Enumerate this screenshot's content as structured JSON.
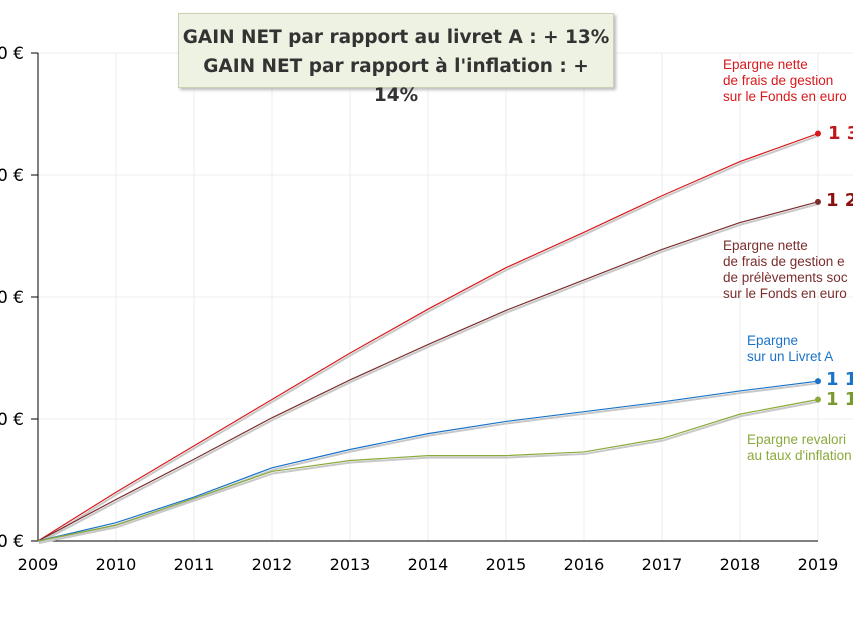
{
  "banner": {
    "line1": "GAIN NET par rapport au livret A : + 13%",
    "line2": "GAIN NET par rapport à l'inflation : + 14%"
  },
  "chart_data": {
    "type": "line",
    "title": "",
    "xlabel": "",
    "ylabel": "",
    "x": [
      2009,
      2010,
      2011,
      2012,
      2013,
      2014,
      2015,
      2016,
      2017,
      2018,
      2019
    ],
    "x_tick_labels": [
      "2009",
      "2010",
      "2011",
      "2012",
      "2013",
      "2014",
      "2015",
      "2016",
      "2017",
      "2018",
      "2019"
    ],
    "y_tick_labels": [
      "0 €",
      "0 €",
      "0 €",
      "0 €",
      "0 €"
    ],
    "y_ticks_units": [
      0,
      1,
      2,
      3,
      4
    ],
    "ylim": [
      0,
      4
    ],
    "y_unit_note": "relative gridline units (axis labels cropped)",
    "grid": true,
    "series": [
      {
        "name": "Epargne nette de frais de gestion sur le Fonds en euro",
        "label_lines": [
          "Epargne nette",
          "de frais de gestion",
          "sur le Fonds en euro"
        ],
        "end_label": "1 3",
        "color": "#d7191c",
        "values": [
          0,
          0.4,
          0.78,
          1.16,
          1.54,
          1.9,
          2.24,
          2.53,
          2.83,
          3.11,
          3.34
        ]
      },
      {
        "name": "Epargne nette de frais de gestion et de prélèvements sociaux sur le Fonds en euro",
        "label_lines": [
          "Epargne nette",
          "de frais de gestion e",
          "de prélèvements soc",
          "sur le Fonds en euro"
        ],
        "end_label": "1 2",
        "color": "#7b2d2d",
        "values": [
          0,
          0.34,
          0.67,
          1.01,
          1.32,
          1.61,
          1.89,
          2.14,
          2.39,
          2.61,
          2.78
        ]
      },
      {
        "name": "Epargne sur un Livret A",
        "label_lines": [
          "Epargne",
          "sur un Livret A"
        ],
        "end_label": "1 1",
        "color": "#1a73c9",
        "values": [
          0,
          0.15,
          0.36,
          0.6,
          0.75,
          0.88,
          0.98,
          1.06,
          1.14,
          1.23,
          1.31
        ]
      },
      {
        "name": "Epargne revalorisée au taux d'inflation",
        "label_lines": [
          "Epargne revalori",
          "au taux d'inflation"
        ],
        "end_label": "1 1",
        "color": "#8aaa3c",
        "values": [
          0,
          0.13,
          0.35,
          0.57,
          0.66,
          0.7,
          0.7,
          0.73,
          0.84,
          1.04,
          1.16
        ]
      }
    ]
  }
}
